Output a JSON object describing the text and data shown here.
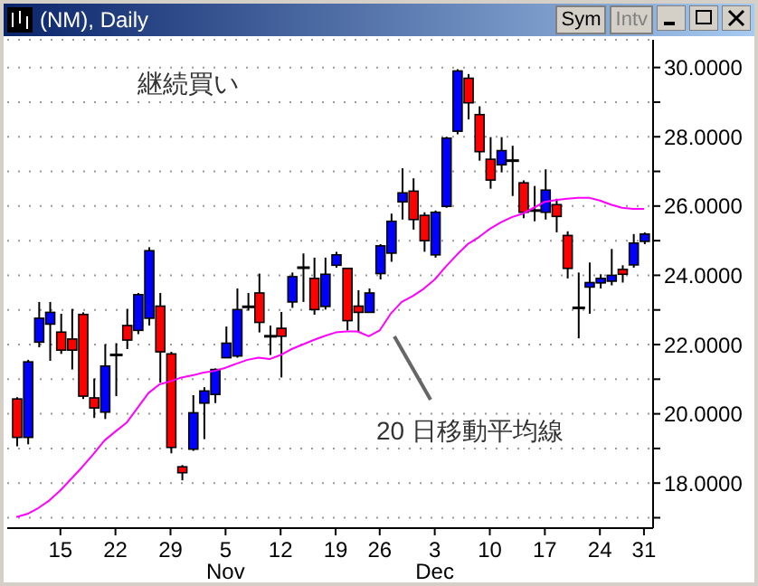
{
  "chart_data": {
    "type": "candlestick",
    "title": "(NM), Daily",
    "annotations": [
      "継続買い",
      "Sym",
      "Intv"
    ],
    "categories": [
      null,
      null,
      null,
      null,
      "15",
      null,
      null,
      null,
      null,
      "22",
      null,
      null,
      null,
      null,
      "29",
      null,
      null,
      null,
      null,
      "5\nNov",
      null,
      null,
      null,
      null,
      "12",
      null,
      null,
      null,
      null,
      "19",
      null,
      null,
      null,
      "26",
      null,
      null,
      null,
      null,
      "3\nDec",
      null,
      null,
      null,
      null,
      "10",
      null,
      null,
      null,
      null,
      "17",
      null,
      null,
      null,
      null,
      "24",
      null,
      null,
      null,
      "31"
    ],
    "ylim": [
      16.7,
      30.8
    ],
    "yticks": [
      {
        "value": 17,
        "label": null
      },
      {
        "value": 18,
        "label": "18.0000"
      },
      {
        "value": 19,
        "label": null
      },
      {
        "value": 20,
        "label": "20.0000"
      },
      {
        "value": 21,
        "label": null
      },
      {
        "value": 22,
        "label": "22.0000"
      },
      {
        "value": 23,
        "label": null
      },
      {
        "value": 24,
        "label": "24.0000"
      },
      {
        "value": 25,
        "label": null
      },
      {
        "value": 26,
        "label": "26.0000"
      },
      {
        "value": 27,
        "label": null
      },
      {
        "value": 28,
        "label": "28.0000"
      },
      {
        "value": 29,
        "label": null
      },
      {
        "value": 30,
        "label": "30.0000"
      }
    ],
    "grid": "y",
    "series": [
      {
        "type": "candlestick",
        "ohlc": [
          [
            20.43,
            20.48,
            19.06,
            19.32
          ],
          [
            19.32,
            21.56,
            19.12,
            21.5
          ],
          [
            22.07,
            23.23,
            21.92,
            22.76
          ],
          [
            22.59,
            23.23,
            21.53,
            22.93
          ],
          [
            22.36,
            22.89,
            21.73,
            21.84
          ],
          [
            22.16,
            23.03,
            21.28,
            21.84
          ],
          [
            22.87,
            22.93,
            20.43,
            20.51
          ],
          [
            20.46,
            21.02,
            19.88,
            20.17
          ],
          [
            20.05,
            22.01,
            19.85,
            21.38
          ],
          [
            21.7,
            22.04,
            20.51,
            21.7
          ],
          [
            22.55,
            23.03,
            21.87,
            22.13
          ],
          [
            22.41,
            23.49,
            22.3,
            23.44
          ],
          [
            22.76,
            24.81,
            22.55,
            24.71
          ],
          [
            23.11,
            23.49,
            20.9,
            21.79
          ],
          [
            21.73,
            21.79,
            18.86,
            19.03
          ],
          [
            18.47,
            18.52,
            18.08,
            18.3
          ],
          [
            18.98,
            20.54,
            18.93,
            20.03
          ],
          [
            20.31,
            20.77,
            19.27,
            20.66
          ],
          [
            20.56,
            21.31,
            20.31,
            21.28
          ],
          [
            21.62,
            22.52,
            21.62,
            22.04
          ],
          [
            21.67,
            23.62,
            21.62,
            23.01
          ],
          [
            23.09,
            23.49,
            22.98,
            23.09
          ],
          [
            23.49,
            24.05,
            22.35,
            22.64
          ],
          [
            22.24,
            22.55,
            21.7,
            22.24
          ],
          [
            22.47,
            22.94,
            21.05,
            22.24
          ],
          [
            23.23,
            24.08,
            23.06,
            23.96
          ],
          [
            24.22,
            24.63,
            23.23,
            24.22
          ],
          [
            23.91,
            24.51,
            22.86,
            23.01
          ],
          [
            23.1,
            24.51,
            23.01,
            24.03
          ],
          [
            24.29,
            24.68,
            24.22,
            24.59
          ],
          [
            24.2,
            24.2,
            22.41,
            22.69
          ],
          [
            23.11,
            23.57,
            22.35,
            22.93
          ],
          [
            22.93,
            23.62,
            22.93,
            23.49
          ],
          [
            24.05,
            24.9,
            23.88,
            24.85
          ],
          [
            24.64,
            25.78,
            24.39,
            25.56
          ],
          [
            26.12,
            27.09,
            25.61,
            26.38
          ],
          [
            26.43,
            26.8,
            25.32,
            25.61
          ],
          [
            25.73,
            25.82,
            24.68,
            25.0
          ],
          [
            24.59,
            25.87,
            24.51,
            25.82
          ],
          [
            25.99,
            28.0,
            25.95,
            27.96
          ],
          [
            28.16,
            29.95,
            28.07,
            29.9
          ],
          [
            29.69,
            29.81,
            28.5,
            28.98
          ],
          [
            28.64,
            28.88,
            27.31,
            27.57
          ],
          [
            27.35,
            27.99,
            26.5,
            26.75
          ],
          [
            27.19,
            27.99,
            26.97,
            27.6
          ],
          [
            27.31,
            27.74,
            26.29,
            27.31
          ],
          [
            26.67,
            26.74,
            25.65,
            25.82
          ],
          [
            25.87,
            26.58,
            25.56,
            25.87
          ],
          [
            25.82,
            27.06,
            25.61,
            26.46
          ],
          [
            26.04,
            26.21,
            25.24,
            25.7
          ],
          [
            25.15,
            25.27,
            23.91,
            24.2
          ],
          [
            23.06,
            24.08,
            22.18,
            23.06
          ],
          [
            23.66,
            24.37,
            22.89,
            23.79
          ],
          [
            23.78,
            24.03,
            23.62,
            23.91
          ],
          [
            23.83,
            24.76,
            23.71,
            24.0
          ],
          [
            24.17,
            24.29,
            23.79,
            24.03
          ],
          [
            24.3,
            25.19,
            24.22,
            24.93
          ],
          [
            24.98,
            25.24,
            24.9,
            25.19
          ]
        ],
        "colors": [
          "#ff0000",
          "#0000ff",
          "#0000ff",
          "#0000ff",
          "#ff0000",
          "#ff0000",
          "#ff0000",
          "#ff0000",
          "#0000ff",
          "#000000",
          "#ff0000",
          "#0000ff",
          "#0000ff",
          "#ff0000",
          "#ff0000",
          "#ff0000",
          "#0000ff",
          "#0000ff",
          "#0000ff",
          "#0000ff",
          "#0000ff",
          "#000000",
          "#ff0000",
          "#000000",
          "#ff0000",
          "#0000ff",
          "#000000",
          "#ff0000",
          "#0000ff",
          "#0000ff",
          "#ff0000",
          "#ff0000",
          "#0000ff",
          "#0000ff",
          "#0000ff",
          "#0000ff",
          "#ff0000",
          "#ff0000",
          "#0000ff",
          "#0000ff",
          "#0000ff",
          "#ff0000",
          "#ff0000",
          "#ff0000",
          "#0000ff",
          "#000000",
          "#ff0000",
          "#000000",
          "#0000ff",
          "#ff0000",
          "#ff0000",
          "#000000",
          "#0000ff",
          "#0000ff",
          "#0000ff",
          "#ff0000",
          "#0000ff",
          "#0000ff"
        ]
      },
      {
        "type": "line",
        "name": "20 日移動平均線",
        "color": "#ff00ff",
        "marker": "none",
        "values": [
          17.02,
          17.11,
          17.28,
          17.5,
          17.79,
          18.13,
          18.47,
          18.84,
          19.23,
          19.49,
          19.74,
          20.17,
          20.6,
          20.85,
          20.94,
          21.05,
          21.11,
          21.19,
          21.24,
          21.33,
          21.45,
          21.56,
          21.62,
          21.58,
          21.7,
          21.87,
          22.0,
          22.13,
          22.25,
          22.35,
          22.38,
          22.38,
          22.24,
          22.41,
          22.89,
          23.23,
          23.4,
          23.61,
          23.88,
          24.25,
          24.59,
          24.9,
          25.1,
          25.34,
          25.53,
          25.68,
          25.78,
          25.95,
          26.12,
          26.17,
          26.21,
          26.24,
          26.24,
          26.16,
          26.04,
          25.95,
          25.92,
          25.92
        ]
      }
    ]
  }
}
